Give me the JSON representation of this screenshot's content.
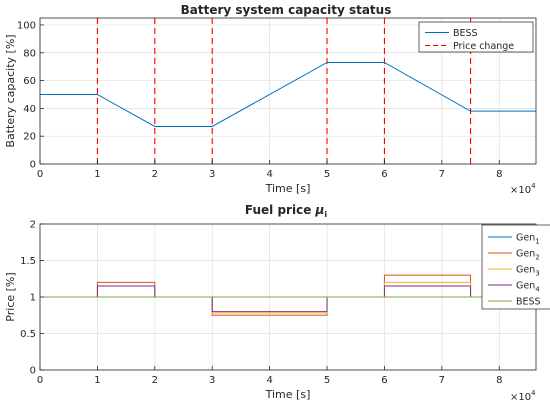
{
  "chart_data": [
    {
      "type": "line",
      "title": "Battery system capacity status",
      "xlabel": "Time [s]",
      "ylabel": "Battery capacity [%]",
      "x_multiplier": "×10",
      "x_multiplier_exp": "4",
      "xlim": [
        0,
        86400
      ],
      "ylim": [
        0,
        105
      ],
      "xticks": [
        0,
        10000,
        20000,
        30000,
        40000,
        50000,
        60000,
        70000,
        80000
      ],
      "xtick_labels": [
        "0",
        "1",
        "2",
        "3",
        "4",
        "5",
        "6",
        "7",
        "8"
      ],
      "yticks": [
        0,
        20,
        40,
        60,
        80,
        100
      ],
      "ytick_labels": [
        "0",
        "20",
        "40",
        "60",
        "80",
        "100"
      ],
      "grid": true,
      "legend_position": "top-right",
      "series": [
        {
          "name": "BESS",
          "color": "#0072BD",
          "style": "solid",
          "x": [
            0,
            10000,
            20000,
            30000,
            50000,
            60000,
            75000,
            86400
          ],
          "y": [
            50,
            50,
            27,
            27,
            73,
            73,
            38,
            38
          ]
        }
      ],
      "vlines": {
        "name": "Price change",
        "color": "#FF0000",
        "style": "dashed",
        "x": [
          10000,
          20000,
          30000,
          50000,
          60000,
          75000
        ]
      }
    },
    {
      "type": "line",
      "title": "Fuel price ",
      "title_symbol": "μ",
      "title_sub": "i",
      "xlabel": "Time [s]",
      "ylabel": "Price [%]",
      "x_multiplier": "×10",
      "x_multiplier_exp": "4",
      "xlim": [
        0,
        86400
      ],
      "ylim": [
        0,
        2
      ],
      "xticks": [
        0,
        10000,
        20000,
        30000,
        40000,
        50000,
        60000,
        70000,
        80000
      ],
      "xtick_labels": [
        "0",
        "1",
        "2",
        "3",
        "4",
        "5",
        "6",
        "7",
        "8"
      ],
      "yticks": [
        0,
        0.5,
        1,
        1.5,
        2
      ],
      "ytick_labels": [
        "0",
        "0.5",
        "1",
        "1.5",
        "2"
      ],
      "grid": true,
      "legend_position": "top-right",
      "series": [
        {
          "name": "Gen",
          "sub": "1",
          "color": "#0072BD",
          "x": [
            0,
            86400
          ],
          "y": [
            1,
            1
          ]
        },
        {
          "name": "Gen",
          "sub": "2",
          "color": "#D95319",
          "x": [
            0,
            10000,
            10000,
            20000,
            20000,
            30000,
            30000,
            50000,
            50000,
            60000,
            60000,
            75000,
            75000,
            86400
          ],
          "y": [
            1,
            1,
            1.2,
            1.2,
            1,
            1,
            0.75,
            0.75,
            1,
            1,
            1.3,
            1.3,
            1,
            1
          ]
        },
        {
          "name": "Gen",
          "sub": "3",
          "color": "#EDB120",
          "x": [
            0,
            30000,
            30000,
            50000,
            50000,
            60000,
            60000,
            75000,
            75000,
            86400
          ],
          "y": [
            1,
            1,
            0.78,
            0.78,
            1,
            1,
            1.2,
            1.2,
            1,
            1
          ]
        },
        {
          "name": "Gen",
          "sub": "4",
          "color": "#7E2F8E",
          "x": [
            0,
            10000,
            10000,
            20000,
            20000,
            30000,
            30000,
            50000,
            50000,
            60000,
            60000,
            75000,
            75000,
            86400
          ],
          "y": [
            1,
            1,
            1.15,
            1.15,
            1,
            1,
            0.8,
            0.8,
            1,
            1,
            1.15,
            1.15,
            1,
            1
          ]
        },
        {
          "name": "BESS",
          "sub": "",
          "color": "#77AC30",
          "x": [
            0,
            86400
          ],
          "y": [
            1,
            1
          ]
        }
      ]
    }
  ]
}
